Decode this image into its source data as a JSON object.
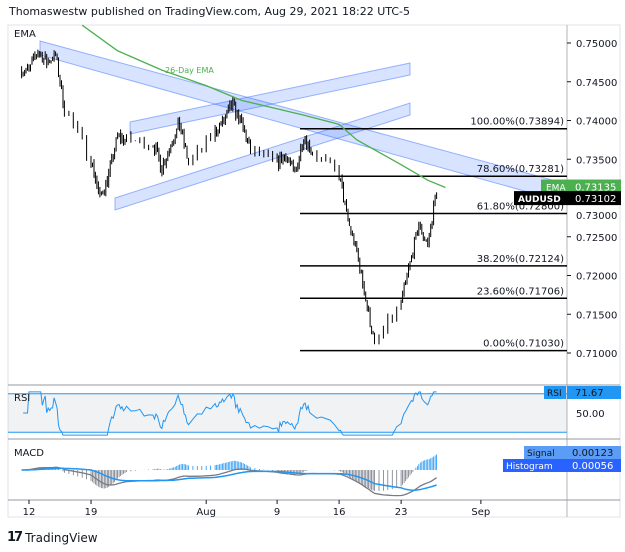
{
  "header": "Thomaswestw published on TradingView.com, Aug 29, 2021 18:22 UTC-5",
  "footer": {
    "brand": "TradingView",
    "logo_icon": "tradingview-logo-icon"
  },
  "colors": {
    "ema": "#4caf50",
    "channel": "#2962ff",
    "rsi": "#2196f3",
    "macd": "#787b86",
    "signal": "#2196f3",
    "bar": "#000000"
  },
  "chart_data": [
    {
      "type": "ohlc",
      "panel_label": "EMA",
      "symbol": "AUDUSD",
      "ylim": [
        0.707,
        0.7525
      ],
      "yticks": [
        "0.75000",
        "0.74500",
        "0.74000",
        "0.73500",
        "0.73000",
        "0.72500",
        "0.72000",
        "0.71500",
        "0.71000"
      ],
      "xticks": [
        "12",
        "19",
        "Aug",
        "9",
        "16",
        "23",
        "Sep"
      ],
      "closes": [
        [
          "Jul 12",
          0.7465
        ],
        [
          "Jul 13",
          0.749
        ],
        [
          "Jul 14",
          0.7475
        ],
        [
          "Jul 15",
          0.7485
        ],
        [
          "Jul 16",
          0.7415
        ],
        [
          "Jul 19",
          0.735
        ],
        [
          "Jul 20",
          0.73
        ],
        [
          "Jul 21",
          0.733
        ],
        [
          "Jul 22",
          0.738
        ],
        [
          "Jul 23",
          0.7375
        ],
        [
          "Jul 26",
          0.737
        ],
        [
          "Jul 27",
          0.734
        ],
        [
          "Jul 28",
          0.737
        ],
        [
          "Jul 29",
          0.7395
        ],
        [
          "Jul 30",
          0.7345
        ],
        [
          "Aug 2",
          0.7385
        ],
        [
          "Aug 3",
          0.74
        ],
        [
          "Aug 4",
          0.742
        ],
        [
          "Aug 5",
          0.7395
        ],
        [
          "Aug 6",
          0.736
        ],
        [
          "Aug 9",
          0.7345
        ],
        [
          "Aug 10",
          0.7355
        ],
        [
          "Aug 11",
          0.733
        ],
        [
          "Aug 12",
          0.738
        ],
        [
          "Aug 13",
          0.736
        ],
        [
          "Aug 16",
          0.733
        ],
        [
          "Aug 17",
          0.727
        ],
        [
          "Aug 18",
          0.723
        ],
        [
          "Aug 19",
          0.717
        ],
        [
          "Aug 20",
          0.711
        ],
        [
          "Aug 23",
          0.7165
        ],
        [
          "Aug 24",
          0.7215
        ],
        [
          "Aug 25",
          0.7265
        ],
        [
          "Aug 26",
          0.724
        ],
        [
          "Aug 27",
          0.731
        ]
      ],
      "ema": {
        "name": "26-Day EMA",
        "label": "EMA",
        "last": "0.73135",
        "points": [
          [
            "Jul 18",
            0.7523
          ],
          [
            "Jul 22",
            0.749
          ],
          [
            "Jul 27",
            0.7465
          ],
          [
            "Aug 1",
            0.7445
          ],
          [
            "Aug 5",
            0.7426
          ],
          [
            "Aug 12",
            0.7407
          ],
          [
            "Aug 16",
            0.7395
          ],
          [
            "Aug 18",
            0.7375
          ],
          [
            "Aug 23",
            0.7343
          ],
          [
            "Aug 26",
            0.7323
          ],
          [
            "Aug 28",
            0.73135
          ]
        ]
      },
      "last_price": "0.73102",
      "fib_levels": [
        {
          "label": "100.00%(0.73894)",
          "value": 0.73894
        },
        {
          "label": "78.60%(0.73281)",
          "value": 0.73281
        },
        {
          "label": "61.80%(0.72800)",
          "value": 0.728
        },
        {
          "label": "38.20%(0.72124)",
          "value": 0.72124
        },
        {
          "label": "23.60%(0.71706)",
          "value": 0.71706
        },
        {
          "label": "0.00%(0.71030)",
          "value": 0.7103
        }
      ]
    },
    {
      "type": "line",
      "panel_label": "RSI",
      "label": "RSI",
      "last": "71.67",
      "ylim": [
        25,
        75
      ],
      "yticks": [
        "50.00"
      ],
      "bands": [
        30,
        70
      ]
    },
    {
      "type": "macd",
      "panel_label": "MACD",
      "signal_label": "Signal",
      "signal_last": "0.00123",
      "hist_label": "Histogram",
      "hist_last": "0.00056"
    }
  ]
}
